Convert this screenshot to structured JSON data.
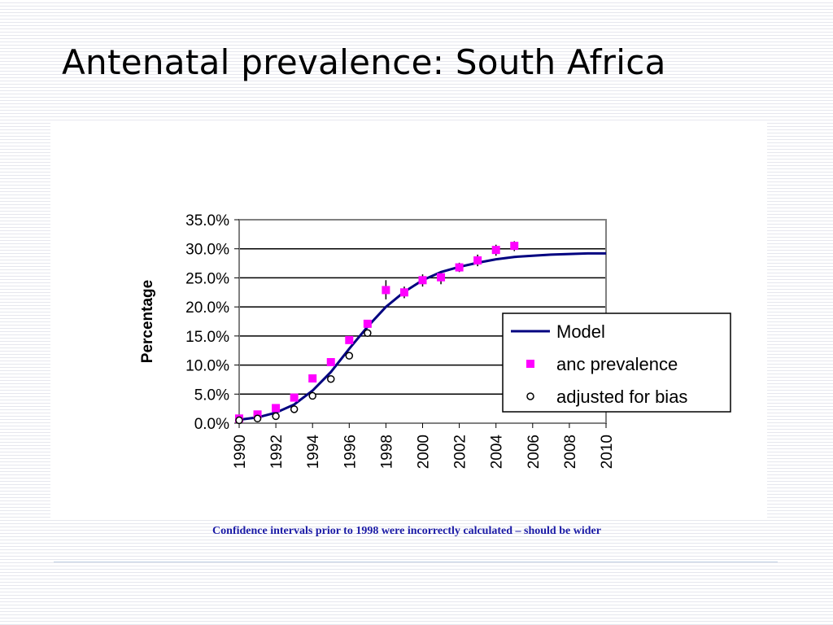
{
  "slide": {
    "title": "Antenatal prevalence: South Africa",
    "footnote": "Confidence intervals prior to 1998 were incorrectly calculated – should be wider"
  },
  "colors": {
    "model": "#000080",
    "anc": "#ff00ff",
    "adjusted": "#000000",
    "footnote": "#1a1aa6",
    "gridline": "#000000",
    "plot_border": "#808080"
  },
  "chart_data": {
    "type": "line",
    "title": "",
    "xlabel": "",
    "ylabel": "Percentage",
    "xlim": [
      1990,
      2010
    ],
    "ylim": [
      0,
      35
    ],
    "x_ticks": [
      "1990",
      "1992",
      "1994",
      "1996",
      "1998",
      "2000",
      "2002",
      "2004",
      "2006",
      "2008",
      "2010"
    ],
    "y_ticks": [
      "0.0%",
      "5.0%",
      "10.0%",
      "15.0%",
      "20.0%",
      "25.0%",
      "30.0%",
      "35.0%"
    ],
    "y_tick_values": [
      0,
      5,
      10,
      15,
      20,
      25,
      30,
      35
    ],
    "grid": "horizontal",
    "legend_position": "right",
    "series": [
      {
        "name": "Model",
        "style": "line",
        "color": "#000080",
        "x": [
          1990,
          1991,
          1992,
          1993,
          1994,
          1995,
          1996,
          1997,
          1998,
          1999,
          2000,
          2001,
          2002,
          2003,
          2004,
          2005,
          2006,
          2007,
          2008,
          2009,
          2010
        ],
        "values": [
          0.6,
          1.0,
          1.8,
          3.2,
          5.6,
          8.8,
          12.8,
          16.6,
          20.0,
          22.6,
          24.6,
          26.0,
          26.9,
          27.6,
          28.2,
          28.6,
          28.8,
          29.0,
          29.1,
          29.2,
          29.2
        ]
      },
      {
        "name": "anc prevalence",
        "style": "square",
        "color": "#ff00ff",
        "x": [
          1990,
          1991,
          1992,
          1993,
          1994,
          1995,
          1996,
          1997,
          1998,
          1999,
          2000,
          2001,
          2002,
          2003,
          2004,
          2005
        ],
        "values": [
          0.8,
          1.5,
          2.6,
          4.4,
          7.7,
          10.5,
          14.3,
          17.1,
          22.9,
          22.5,
          24.6,
          25.1,
          26.8,
          28.0,
          29.8,
          30.5
        ],
        "error_low": [
          null,
          null,
          null,
          null,
          null,
          null,
          null,
          null,
          21.3,
          21.5,
          23.5,
          23.9,
          26.0,
          27.0,
          28.8,
          29.6
        ],
        "error_high": [
          null,
          null,
          null,
          null,
          null,
          null,
          null,
          null,
          24.6,
          23.5,
          25.6,
          26.1,
          27.6,
          29.0,
          30.7,
          31.3
        ]
      },
      {
        "name": "adjusted for bias",
        "style": "circle",
        "color": "#000000",
        "x": [
          1990,
          1991,
          1992,
          1993,
          1994,
          1995,
          1996,
          1997
        ],
        "values": [
          0.5,
          0.8,
          1.2,
          2.4,
          4.7,
          7.6,
          11.6,
          15.5
        ]
      }
    ]
  }
}
